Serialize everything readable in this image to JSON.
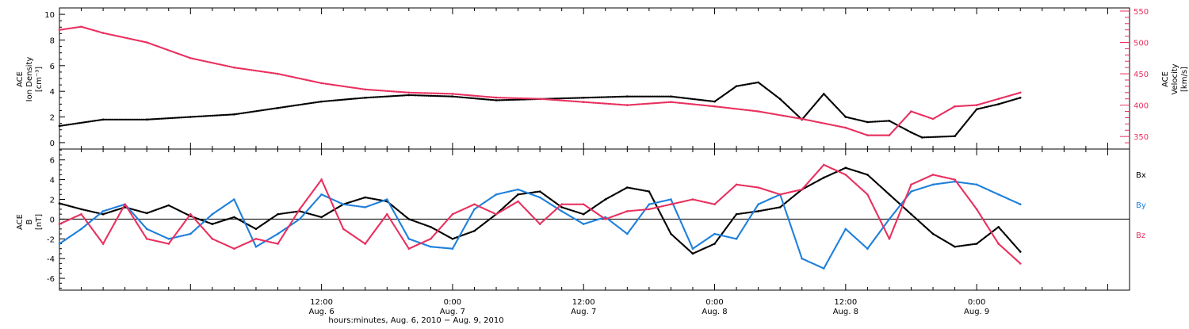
{
  "colors": {
    "black": "#000000",
    "pink": "#e8305f",
    "blue": "#1e7fdc"
  },
  "xlabel": "hours:minutes, Aug.  6, 2010 − Aug.  9, 2010",
  "panels": {
    "top": {
      "ylabel_left": [
        "ACE",
        "Ion Density",
        "[cm⁻³]"
      ],
      "ylabel_right": [
        "ACE",
        "Velocity",
        "[km/s]"
      ]
    },
    "bottom": {
      "ylabel_left": [
        "ACE",
        "B",
        "[nT]"
      ],
      "legend": [
        "Bx",
        "By",
        "Bz"
      ]
    }
  },
  "chart_data": [
    {
      "type": "scatter",
      "title": "",
      "x_unit": "hours since 2010-08-06 00:00 UT",
      "xlim": [
        -12,
        86
      ],
      "x_major_ticks": [
        12,
        24,
        36,
        48,
        60,
        72
      ],
      "x_tick_labels": [
        [
          "12:00",
          "Aug. 6"
        ],
        [
          "0:00",
          "Aug. 7"
        ],
        [
          "12:00",
          "Aug. 7"
        ],
        [
          "0:00",
          "Aug. 8"
        ],
        [
          "12:00",
          "Aug. 8"
        ],
        [
          "0:00",
          "Aug. 9"
        ]
      ],
      "y_left": {
        "label": "ACE Ion Density [cm⁻³]",
        "ylim": [
          -0.5,
          10.5
        ],
        "ticks": [
          0,
          2,
          4,
          6,
          8,
          10
        ]
      },
      "y_right": {
        "label": "ACE Velocity [km/s]",
        "ylim": [
          330,
          555
        ],
        "ticks": [
          350,
          400,
          450,
          500,
          550
        ]
      },
      "series": [
        {
          "name": "Ion Density",
          "axis": "left",
          "color": "black",
          "x": [
            -12,
            -8,
            -4,
            0,
            4,
            8,
            12,
            16,
            20,
            24,
            28,
            32,
            36,
            40,
            44,
            48,
            50,
            52,
            54,
            56,
            58,
            60,
            62,
            64,
            66,
            67,
            70,
            72,
            74,
            76
          ],
          "y": [
            1.3,
            1.8,
            1.8,
            2.0,
            2.2,
            2.7,
            3.2,
            3.5,
            3.7,
            3.6,
            3.3,
            3.4,
            3.5,
            3.6,
            3.6,
            3.2,
            4.4,
            4.7,
            3.4,
            1.8,
            3.8,
            2.0,
            1.6,
            1.7,
            0.8,
            0.4,
            0.5,
            2.6,
            3.0,
            3.5
          ]
        },
        {
          "name": "Velocity",
          "axis": "right",
          "color": "pink",
          "x": [
            -12,
            -10,
            -8,
            -4,
            0,
            4,
            8,
            12,
            16,
            20,
            24,
            28,
            32,
            36,
            40,
            44,
            48,
            52,
            56,
            60,
            62,
            64,
            66,
            68,
            70,
            72,
            74,
            76
          ],
          "y": [
            520,
            525,
            515,
            500,
            475,
            460,
            450,
            435,
            425,
            420,
            418,
            412,
            410,
            405,
            400,
            405,
            398,
            390,
            378,
            364,
            352,
            352,
            390,
            378,
            398,
            400,
            410,
            420
          ]
        }
      ]
    },
    {
      "type": "scatter",
      "title": "",
      "x_unit": "hours since 2010-08-06 00:00 UT",
      "xlim": [
        -12,
        86
      ],
      "y_left": {
        "label": "ACE B [nT]",
        "ylim": [
          -7.2,
          7.1
        ],
        "ticks": [
          -6,
          -4,
          -2,
          0,
          2,
          4,
          6
        ]
      },
      "zero_line": true,
      "series": [
        {
          "name": "Bx",
          "color": "black",
          "x": [
            -12,
            -10,
            -8,
            -6,
            -4,
            -2,
            0,
            2,
            4,
            6,
            8,
            10,
            12,
            14,
            16,
            18,
            20,
            22,
            24,
            26,
            28,
            30,
            32,
            34,
            36,
            38,
            40,
            42,
            44,
            46,
            48,
            50,
            52,
            54,
            56,
            58,
            60,
            62,
            64,
            66,
            68,
            70,
            72,
            74,
            76
          ],
          "y": [
            1.6,
            1.0,
            0.5,
            1.2,
            0.6,
            1.4,
            0.3,
            -0.5,
            0.2,
            -1.0,
            0.5,
            0.8,
            0.2,
            1.5,
            2.2,
            1.8,
            0.0,
            -0.8,
            -2.0,
            -1.2,
            0.5,
            2.5,
            2.8,
            1.2,
            0.5,
            2.0,
            3.2,
            2.8,
            -1.5,
            -3.5,
            -2.5,
            0.5,
            0.8,
            1.2,
            3.0,
            4.2,
            5.2,
            4.5,
            2.5,
            0.5,
            -1.5,
            -2.8,
            -2.5,
            -0.8,
            -3.3
          ]
        },
        {
          "name": "By",
          "color": "blue",
          "x": [
            -12,
            -10,
            -8,
            -6,
            -4,
            -2,
            0,
            2,
            4,
            6,
            8,
            10,
            12,
            14,
            16,
            18,
            20,
            22,
            24,
            26,
            28,
            30,
            32,
            34,
            36,
            38,
            40,
            42,
            44,
            46,
            48,
            50,
            52,
            54,
            56,
            58,
            60,
            62,
            64,
            66,
            68,
            70,
            72,
            74,
            76
          ],
          "y": [
            -2.5,
            -1.0,
            0.8,
            1.5,
            -1.0,
            -2.0,
            -1.5,
            0.5,
            2.0,
            -2.8,
            -1.5,
            0.0,
            2.5,
            1.5,
            1.2,
            2.0,
            -2.0,
            -2.8,
            -3.0,
            1.0,
            2.5,
            3.0,
            2.2,
            0.8,
            -0.5,
            0.2,
            -1.5,
            1.5,
            2.0,
            -3.0,
            -1.5,
            -2.0,
            1.5,
            2.5,
            -4.0,
            -5.0,
            -1.0,
            -3.0,
            0.0,
            2.8,
            3.5,
            3.8,
            3.5,
            2.5,
            1.5
          ]
        },
        {
          "name": "Bz",
          "color": "pink",
          "x": [
            -12,
            -10,
            -8,
            -6,
            -4,
            -2,
            0,
            2,
            4,
            6,
            8,
            10,
            12,
            14,
            16,
            18,
            20,
            22,
            24,
            26,
            28,
            30,
            32,
            34,
            36,
            38,
            40,
            42,
            44,
            46,
            48,
            50,
            52,
            54,
            56,
            58,
            60,
            62,
            64,
            66,
            68,
            70,
            72,
            74,
            76
          ],
          "y": [
            -0.5,
            0.5,
            -2.5,
            1.5,
            -2.0,
            -2.5,
            0.5,
            -2.0,
            -3.0,
            -2.0,
            -2.5,
            1.0,
            4.0,
            -1.0,
            -2.5,
            0.5,
            -3.0,
            -2.0,
            0.5,
            1.5,
            0.5,
            1.8,
            -0.5,
            1.5,
            1.5,
            0.0,
            0.8,
            1.0,
            1.5,
            2.0,
            1.5,
            3.5,
            3.2,
            2.5,
            3.0,
            5.5,
            4.5,
            2.5,
            -2.0,
            3.5,
            4.5,
            4.0,
            1.0,
            -2.5,
            -4.5
          ]
        }
      ]
    }
  ]
}
